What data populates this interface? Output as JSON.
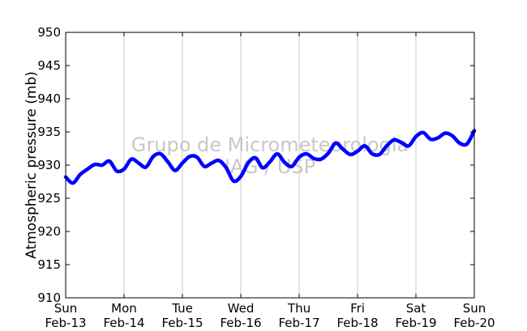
{
  "chart_data": {
    "type": "line",
    "ylabel": "Atmospheric pressure (mb)",
    "xlabel": "",
    "ylim": [
      910,
      950
    ],
    "y_ticks": [
      910,
      915,
      920,
      925,
      930,
      935,
      940,
      945,
      950
    ],
    "x_ticks": [
      {
        "day": "Sun",
        "date": "Feb-13"
      },
      {
        "day": "Mon",
        "date": "Feb-14"
      },
      {
        "day": "Tue",
        "date": "Feb-15"
      },
      {
        "day": "Wed",
        "date": "Feb-16"
      },
      {
        "day": "Thu",
        "date": "Feb-17"
      },
      {
        "day": "Fri",
        "date": "Feb-18"
      },
      {
        "day": "Sat",
        "date": "Feb-19"
      },
      {
        "day": "Sun",
        "date": "Feb-20"
      }
    ],
    "grid": "vertical",
    "watermark": [
      "Grupo de Micrometeorologia",
      "IAG / USP"
    ],
    "line_color": "#0000ff",
    "series": [
      {
        "x": [
          "Feb-13 00:00",
          "Feb-13 03:00",
          "Feb-13 06:00",
          "Feb-13 09:00",
          "Feb-13 12:00",
          "Feb-13 15:00",
          "Feb-13 18:00",
          "Feb-13 21:00",
          "Feb-14 00:00",
          "Feb-14 03:00",
          "Feb-14 06:00",
          "Feb-14 09:00",
          "Feb-14 12:00",
          "Feb-14 15:00",
          "Feb-14 18:00",
          "Feb-14 21:00",
          "Feb-15 00:00",
          "Feb-15 03:00",
          "Feb-15 06:00",
          "Feb-15 09:00",
          "Feb-15 12:00",
          "Feb-15 15:00",
          "Feb-15 18:00",
          "Feb-15 21:00",
          "Feb-16 00:00",
          "Feb-16 03:00",
          "Feb-16 06:00",
          "Feb-16 09:00",
          "Feb-16 12:00",
          "Feb-16 15:00",
          "Feb-16 18:00",
          "Feb-16 21:00",
          "Feb-17 00:00",
          "Feb-17 03:00",
          "Feb-17 06:00",
          "Feb-17 09:00",
          "Feb-17 12:00",
          "Feb-17 15:00",
          "Feb-17 18:00",
          "Feb-17 21:00",
          "Feb-18 00:00",
          "Feb-18 03:00",
          "Feb-18 06:00",
          "Feb-18 09:00",
          "Feb-18 12:00",
          "Feb-18 15:00",
          "Feb-18 18:00",
          "Feb-18 21:00",
          "Feb-19 00:00",
          "Feb-19 03:00",
          "Feb-19 06:00",
          "Feb-19 09:00",
          "Feb-19 12:00",
          "Feb-19 15:00",
          "Feb-19 18:00",
          "Feb-19 21:00",
          "Feb-20 00:00"
        ],
        "y": [
          928.2,
          927.3,
          928.6,
          929.4,
          930.1,
          930.0,
          930.6,
          929.1,
          929.4,
          930.9,
          930.3,
          929.7,
          931.3,
          931.7,
          930.5,
          929.2,
          930.3,
          931.3,
          931.2,
          929.8,
          930.3,
          930.7,
          929.6,
          927.6,
          928.3,
          930.3,
          931.1,
          929.6,
          930.5,
          931.7,
          930.4,
          929.8,
          931.2,
          931.7,
          931.0,
          930.9,
          931.8,
          933.3,
          932.4,
          931.6,
          932.1,
          932.9,
          931.7,
          931.6,
          932.9,
          933.8,
          933.4,
          932.9,
          934.3,
          934.9,
          933.9,
          934.1,
          934.8,
          934.4,
          933.3,
          933.2,
          935.2
        ]
      }
    ]
  }
}
